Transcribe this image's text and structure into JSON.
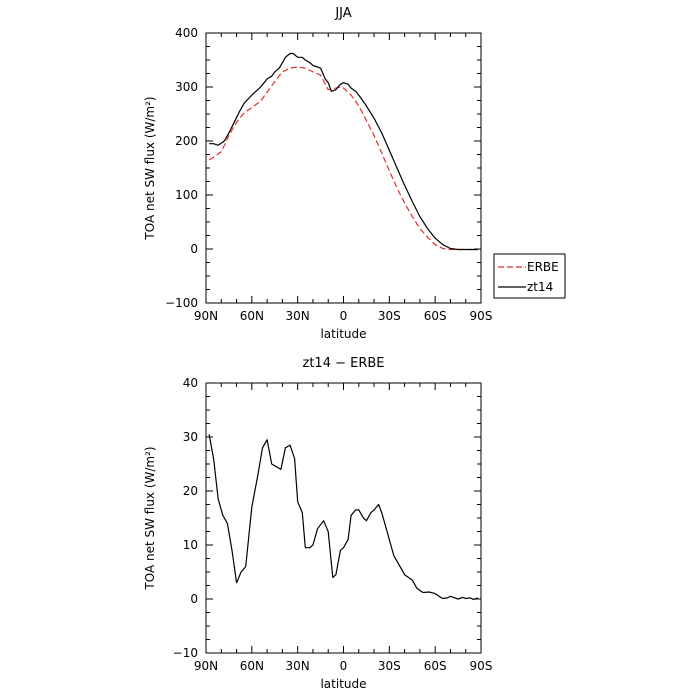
{
  "chart_data": [
    {
      "type": "line",
      "title": "JJA",
      "xlabel": "latitude",
      "ylabel": "TOA net SW flux (W/m²)",
      "xlim": [
        90,
        -90
      ],
      "ylim": [
        -100,
        400
      ],
      "xticks": [
        90,
        60,
        30,
        0,
        -30,
        -60,
        -90
      ],
      "xtick_labels": [
        "90N",
        "60N",
        "30N",
        "0",
        "30S",
        "60S",
        "90S"
      ],
      "yticks": [
        -100,
        0,
        100,
        200,
        300,
        400
      ],
      "ytick_labels": [
        "−100",
        "0",
        "100",
        "200",
        "300",
        "400"
      ],
      "grid": false,
      "legend_position": "right",
      "series": [
        {
          "name": "ERBE",
          "color": "#e03030",
          "style": "dashed",
          "x": [
            88,
            85,
            80,
            75,
            70,
            65,
            60,
            55,
            50,
            45,
            40,
            35,
            30,
            25,
            20,
            15,
            10,
            5,
            2,
            0,
            -5,
            -10,
            -15,
            -20,
            -25,
            -30,
            -35,
            -40,
            -45,
            -50,
            -55,
            -60,
            -65,
            -70,
            -75,
            -80,
            -85,
            -88
          ],
          "y": [
            165,
            170,
            180,
            210,
            235,
            252,
            262,
            272,
            290,
            310,
            328,
            335,
            337,
            335,
            328,
            322,
            295,
            298,
            300,
            298,
            285,
            265,
            238,
            210,
            178,
            145,
            113,
            85,
            60,
            38,
            22,
            8,
            1,
            -1,
            -1,
            -1,
            -1,
            -1
          ]
        },
        {
          "name": "zt14",
          "color": "#000000",
          "style": "solid",
          "x": [
            88,
            85,
            82,
            78,
            75,
            72,
            68,
            65,
            60,
            55,
            52,
            50,
            47,
            45,
            42,
            40,
            38,
            35,
            33,
            30,
            27,
            25,
            22,
            20,
            18,
            15,
            12,
            10,
            8,
            5,
            2,
            0,
            -3,
            -5,
            -8,
            -10,
            -15,
            -20,
            -25,
            -30,
            -35,
            -40,
            -45,
            -50,
            -55,
            -60,
            -65,
            -70,
            -75,
            -80,
            -85,
            -88
          ],
          "y": [
            195,
            195,
            192,
            200,
            215,
            232,
            255,
            270,
            285,
            298,
            308,
            315,
            320,
            328,
            335,
            345,
            355,
            362,
            362,
            355,
            355,
            350,
            345,
            340,
            338,
            335,
            315,
            308,
            292,
            295,
            305,
            308,
            305,
            298,
            292,
            285,
            265,
            242,
            215,
            183,
            150,
            118,
            88,
            60,
            38,
            20,
            8,
            1,
            -1,
            -1,
            -1,
            -1
          ]
        }
      ]
    },
    {
      "type": "line",
      "title": "zt14 − ERBE",
      "xlabel": "latitude",
      "ylabel": "TOA net SW flux (W/m²)",
      "xlim": [
        90,
        -90
      ],
      "ylim": [
        -10,
        40
      ],
      "xticks": [
        90,
        60,
        30,
        0,
        -30,
        -60,
        -90
      ],
      "xtick_labels": [
        "90N",
        "60N",
        "30N",
        "0",
        "30S",
        "60S",
        "90S"
      ],
      "yticks": [
        -10,
        0,
        10,
        20,
        30,
        40
      ],
      "ytick_labels": [
        "−10",
        "0",
        "10",
        "20",
        "30",
        "40"
      ],
      "grid": false,
      "series": [
        {
          "color": "#000000",
          "style": "solid",
          "x": [
            88,
            85,
            82,
            79,
            76,
            73,
            70,
            67,
            64,
            60,
            56,
            53,
            50,
            47,
            44,
            41,
            38,
            35,
            32,
            30,
            27,
            25,
            22,
            20,
            17,
            13,
            10,
            7,
            5,
            2,
            0,
            -3,
            -5,
            -8,
            -10,
            -13,
            -15,
            -18,
            -20,
            -23,
            -25,
            -28,
            -30,
            -33,
            -35,
            -40,
            -45,
            -48,
            -52,
            -56,
            -60,
            -63,
            -65,
            -68,
            -70,
            -73,
            -75,
            -78,
            -80,
            -83,
            -85,
            -88
          ],
          "y": [
            30.5,
            26,
            18.5,
            15.5,
            14,
            9,
            3,
            5,
            6,
            17,
            23,
            28,
            29.5,
            25,
            24.5,
            24,
            28,
            28.5,
            26,
            18,
            16,
            9.5,
            9.5,
            10,
            13,
            14.5,
            12.5,
            4,
            4.5,
            9,
            9.5,
            11,
            15.5,
            16.5,
            16.5,
            15,
            14.5,
            16,
            16.5,
            17.5,
            16,
            13,
            11,
            8,
            7,
            4.5,
            3.5,
            2,
            1.2,
            1.3,
            1.0,
            0.4,
            0.1,
            0.2,
            0.5,
            0.2,
            0.0,
            0.3,
            0.1,
            0.2,
            -0.1,
            0.2
          ]
        }
      ]
    }
  ]
}
